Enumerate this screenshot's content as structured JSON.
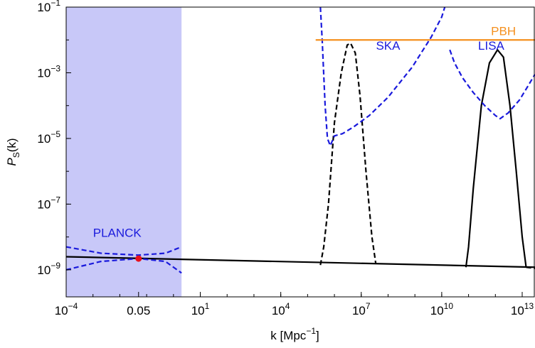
{
  "chart_data": {
    "type": "line",
    "title": "",
    "xlabel": "k [Mpc",
    "xlabel_exponent": "−1",
    "xlabel_tail": "]",
    "ylabel_main": "P",
    "ylabel_sub": "S",
    "ylabel_tail": "(k)",
    "x_scale": "log",
    "y_scale": "log",
    "xlim": [
      0.0001,
      30000000000000
    ],
    "ylim": [
      1.5e-10,
      0.1
    ],
    "x_ticks": [
      {
        "value": 0.0001,
        "base": "10",
        "exp": "−4"
      },
      {
        "value": 0.05,
        "base": "0.05",
        "exp": ""
      },
      {
        "value": 10,
        "base": "10",
        "exp": "1"
      },
      {
        "value": 10000,
        "base": "10",
        "exp": "4"
      },
      {
        "value": 10000000,
        "base": "10",
        "exp": "7"
      },
      {
        "value": 10000000000,
        "base": "10",
        "exp": "10"
      },
      {
        "value": 10000000000000,
        "base": "10",
        "exp": "13"
      }
    ],
    "y_ticks": [
      {
        "value": 0.1,
        "base": "10",
        "exp": "−1"
      },
      {
        "value": 0.001,
        "base": "10",
        "exp": "−3"
      },
      {
        "value": 1e-05,
        "base": "10",
        "exp": "−5"
      },
      {
        "value": 1e-07,
        "base": "10",
        "exp": "−7"
      },
      {
        "value": 1e-09,
        "base": "10",
        "exp": "−9"
      }
    ],
    "grid": false,
    "shaded_region": {
      "x_range": [
        0.0001,
        2.0
      ],
      "color": "#c8c8f8"
    },
    "series": [
      {
        "style": "solid",
        "color": "#000000",
        "points": [
          [
            0.0001,
            2.5e-09
          ],
          [
            30000000000000,
            1.2e-09
          ]
        ]
      },
      {
        "style": "dashed",
        "color": "#000000",
        "points": [
          [
            300000,
            1.4e-09
          ],
          [
            400000,
            5e-09
          ],
          [
            600000,
            1e-07
          ],
          [
            1000000,
            3e-05
          ],
          [
            1800000,
            0.001
          ],
          [
            3000000,
            0.007
          ],
          [
            4000000,
            0.008
          ],
          [
            6000000,
            0.004
          ],
          [
            9000000,
            0.0002
          ],
          [
            15000000,
            1e-06
          ],
          [
            25000000,
            1e-08
          ],
          [
            35000000,
            1.5e-09
          ]
        ]
      },
      {
        "style": "solid",
        "color": "#000000",
        "points": [
          [
            80000000000,
            1.2e-09
          ],
          [
            100000000000,
            5e-09
          ],
          [
            150000000000,
            3e-07
          ],
          [
            300000000000,
            0.0001
          ],
          [
            600000000000,
            0.002
          ],
          [
            1200000000000,
            0.005
          ],
          [
            2000000000000,
            0.003
          ],
          [
            3500000000000,
            0.0001
          ],
          [
            6000000000000,
            1e-06
          ],
          [
            10000000000000,
            1e-08
          ],
          [
            14000000000000,
            1.2e-09
          ]
        ]
      },
      {
        "style": "dashed",
        "color": "#000000",
        "points": [
          [
            14000000000000,
            1.2e-09
          ],
          [
            30000000000000,
            1.1e-09
          ]
        ]
      },
      {
        "style": "dashed",
        "color": "#1a1adc",
        "points": [
          [
            0.0001,
            5e-09
          ],
          [
            0.002,
            3.2e-09
          ],
          [
            0.05,
            2.8e-09
          ],
          [
            0.5,
            3.2e-09
          ],
          [
            2.0,
            5e-09
          ]
        ]
      },
      {
        "style": "dashed",
        "color": "#1a1adc",
        "points": [
          [
            0.0001,
            1e-09
          ],
          [
            0.002,
            1.8e-09
          ],
          [
            0.05,
            2.2e-09
          ],
          [
            0.5,
            1.8e-09
          ],
          [
            2.0,
            8e-10
          ]
        ]
      },
      {
        "style": "dashed",
        "color": "#1a1adc",
        "points": [
          [
            300000,
            0.1
          ],
          [
            350000,
            0.01
          ],
          [
            450000,
            0.0001
          ],
          [
            550000,
            1e-05
          ],
          [
            700000,
            6e-06
          ],
          [
            1000000,
            1.2e-05
          ],
          [
            2000000,
            1.4e-05
          ],
          [
            5000000,
            2.2e-05
          ],
          [
            20000000,
            5e-05
          ],
          [
            100000000,
            0.00018
          ],
          [
            800000000,
            0.0015
          ],
          [
            4000000000,
            0.012
          ],
          [
            10000000000,
            0.05
          ],
          [
            13000000000,
            0.1
          ]
        ]
      },
      {
        "style": "dashed",
        "color": "#1a1adc",
        "points": [
          [
            20000000000,
            0.005
          ],
          [
            30000000000,
            0.002
          ],
          [
            60000000000,
            0.0007
          ],
          [
            150000000000,
            0.00025
          ],
          [
            400000000000,
            0.0001
          ],
          [
            1000000000000,
            5e-05
          ],
          [
            1500000000000,
            4e-05
          ],
          [
            3000000000000,
            6e-05
          ],
          [
            8000000000000,
            0.00015
          ],
          [
            15000000000000,
            0.00035
          ],
          [
            30000000000000,
            0.0009
          ]
        ]
      },
      {
        "style": "solid",
        "color": "#f5901e",
        "points": [
          [
            200000,
            0.01
          ],
          [
            30000000000000,
            0.01
          ]
        ]
      }
    ],
    "points": [
      {
        "x": 0.05,
        "y": 2.2e-09,
        "color": "#e8101c"
      }
    ],
    "annotations": [
      {
        "text": "PLANCK",
        "x": 0.008,
        "y": 1e-08,
        "color": "#1a1adc"
      },
      {
        "text": "SKA",
        "x": 100000000,
        "y": 0.005,
        "color": "#1a1adc"
      },
      {
        "text": "LISA",
        "x": 700000000000,
        "y": 0.005,
        "color": "#1a1adc"
      },
      {
        "text": "PBH",
        "x": 2000000000000,
        "y": 0.014,
        "color": "#f5901e"
      }
    ]
  }
}
